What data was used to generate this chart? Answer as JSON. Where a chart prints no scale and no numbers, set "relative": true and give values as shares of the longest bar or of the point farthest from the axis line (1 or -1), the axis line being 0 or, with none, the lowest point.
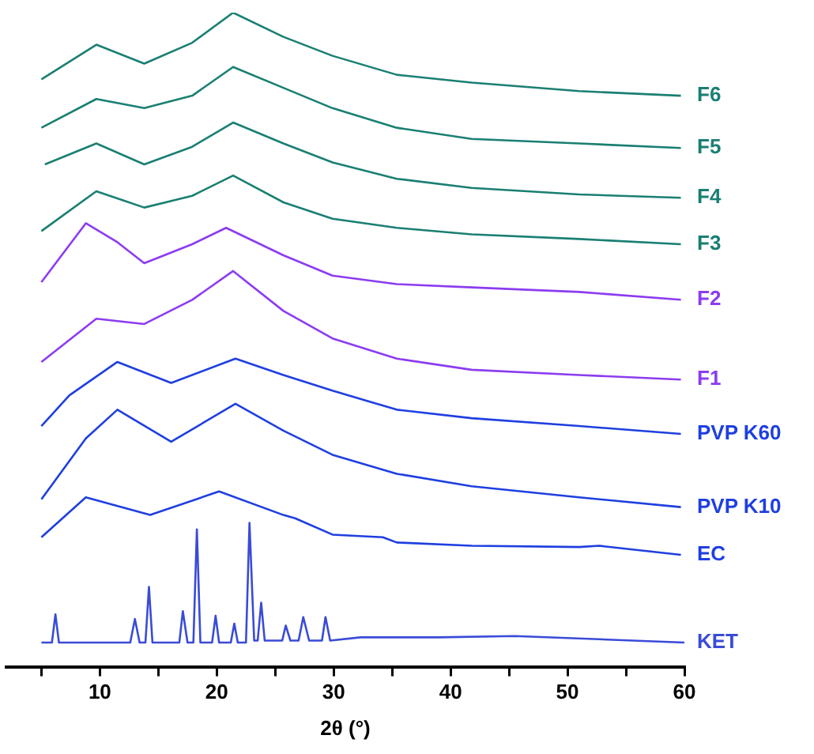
{
  "chart_data": {
    "type": "line",
    "relative": true,
    "xlabel": "2θ (°)",
    "xlim": [
      2,
      60
    ],
    "xticks": [
      {
        "value": 5,
        "label": null
      },
      10,
      {
        "value": 15,
        "label": null
      },
      20,
      {
        "value": 25,
        "label": null
      },
      30,
      {
        "value": 35,
        "label": null
      },
      40,
      {
        "value": 45,
        "label": null
      },
      50,
      {
        "value": 55,
        "label": null
      },
      60
    ],
    "grid": false,
    "legend": false,
    "tick_labels": "x",
    "marker": "none",
    "line_style": "solid",
    "series": [
      {
        "name": "F6",
        "color": "#1a7f73",
        "x": [
          5.0,
          9.7,
          13.8,
          17.9,
          21.4,
          25.7,
          29.9,
          35.4,
          41.8,
          51,
          59.7
        ],
        "values": [
          0.898,
          0.951,
          0.922,
          0.954,
          1,
          0.963,
          0.934,
          0.905,
          0.893,
          0.88,
          0.873
        ]
      },
      {
        "name": "F5",
        "color": "#1a7f73",
        "x": [
          5.0,
          9.7,
          13.8,
          17.9,
          21.4,
          25.7,
          29.9,
          35.4,
          41.8,
          51,
          59.7
        ],
        "values": [
          0.824,
          0.868,
          0.854,
          0.873,
          0.917,
          0.885,
          0.854,
          0.824,
          0.807,
          0.8,
          0.793
        ]
      },
      {
        "name": "F4",
        "color": "#1a7f73",
        "x": [
          5.3,
          9.7,
          13.8,
          17.9,
          21.4,
          25.7,
          29.9,
          35.4,
          41.8,
          51,
          59.7
        ],
        "values": [
          0.768,
          0.8,
          0.768,
          0.795,
          0.832,
          0.8,
          0.771,
          0.746,
          0.732,
          0.722,
          0.717
        ]
      },
      {
        "name": "F3",
        "color": "#1a7f73",
        "x": [
          5.0,
          9.7,
          13.8,
          17.9,
          21.4,
          25.7,
          29.9,
          35.4,
          41.8,
          51,
          59.7
        ],
        "values": [
          0.666,
          0.727,
          0.702,
          0.72,
          0.751,
          0.71,
          0.685,
          0.671,
          0.661,
          0.654,
          0.646
        ]
      },
      {
        "name": "F2",
        "color": "#8c3cf0",
        "x": [
          5.0,
          8.8,
          11.5,
          13.8,
          17.9,
          20.8,
          25.7,
          29.9,
          35.4,
          41.8,
          51,
          59.7
        ],
        "values": [
          0.588,
          0.678,
          0.649,
          0.617,
          0.646,
          0.671,
          0.629,
          0.598,
          0.585,
          0.58,
          0.573,
          0.561
        ]
      },
      {
        "name": "F1",
        "color": "#8c3cf0",
        "x": [
          5.0,
          9.7,
          13.8,
          17.9,
          21.4,
          25.7,
          29.9,
          35.4,
          41.8,
          51,
          59.7
        ],
        "values": [
          0.466,
          0.532,
          0.524,
          0.561,
          0.605,
          0.544,
          0.502,
          0.471,
          0.454,
          0.446,
          0.439
        ]
      },
      {
        "name": "PVP K60",
        "color": "#1f3fe0",
        "x": [
          5.0,
          7.4,
          11.5,
          16.1,
          21.6,
          25.7,
          29.9,
          35.4,
          41.8,
          51,
          59.7
        ],
        "values": [
          0.368,
          0.415,
          0.466,
          0.434,
          0.471,
          0.446,
          0.422,
          0.393,
          0.38,
          0.368,
          0.356
        ]
      },
      {
        "name": "PVP K10",
        "color": "#1f3fe0",
        "x": [
          5.0,
          8.8,
          11.5,
          16.1,
          21.6,
          25.7,
          29.9,
          35.4,
          41.8,
          51,
          59.7
        ],
        "values": [
          0.256,
          0.349,
          0.393,
          0.344,
          0.402,
          0.361,
          0.324,
          0.295,
          0.276,
          0.259,
          0.244
        ]
      },
      {
        "name": "EC",
        "color": "#1f3fe0",
        "x": [
          5.0,
          8.8,
          14.3,
          20.2,
          25.7,
          26.7,
          29.9,
          34.2,
          35.4,
          41.8,
          51,
          52.7,
          59.7
        ],
        "values": [
          0.198,
          0.259,
          0.232,
          0.268,
          0.232,
          0.227,
          0.202,
          0.198,
          0.19,
          0.185,
          0.183,
          0.185,
          0.171
        ]
      },
      {
        "name": "KET",
        "color": "#3a4bd8",
        "x": [
          5.0,
          5.9,
          6.2,
          6.5,
          12.6,
          13.0,
          13.4,
          13.9,
          14.2,
          14.5,
          16.8,
          17.1,
          17.5,
          18.0,
          18.3,
          18.6,
          19.6,
          19.9,
          20.2,
          21.2,
          21.5,
          21.8,
          22.5,
          22.8,
          23.2,
          23.5,
          23.8,
          24.1,
          25.6,
          25.9,
          26.3,
          27.0,
          27.4,
          27.9,
          29.0,
          29.3,
          29.7,
          32.3,
          34.3,
          39.0,
          45.5,
          60.0
        ],
        "values": [
          0.037,
          0.037,
          0.08,
          0.037,
          0.037,
          0.073,
          0.037,
          0.037,
          0.122,
          0.037,
          0.037,
          0.085,
          0.037,
          0.037,
          0.21,
          0.037,
          0.037,
          0.078,
          0.037,
          0.037,
          0.066,
          0.037,
          0.037,
          0.22,
          0.04,
          0.04,
          0.098,
          0.04,
          0.04,
          0.063,
          0.04,
          0.04,
          0.076,
          0.04,
          0.04,
          0.076,
          0.04,
          0.045,
          0.045,
          0.045,
          0.047,
          0.037
        ]
      }
    ]
  }
}
